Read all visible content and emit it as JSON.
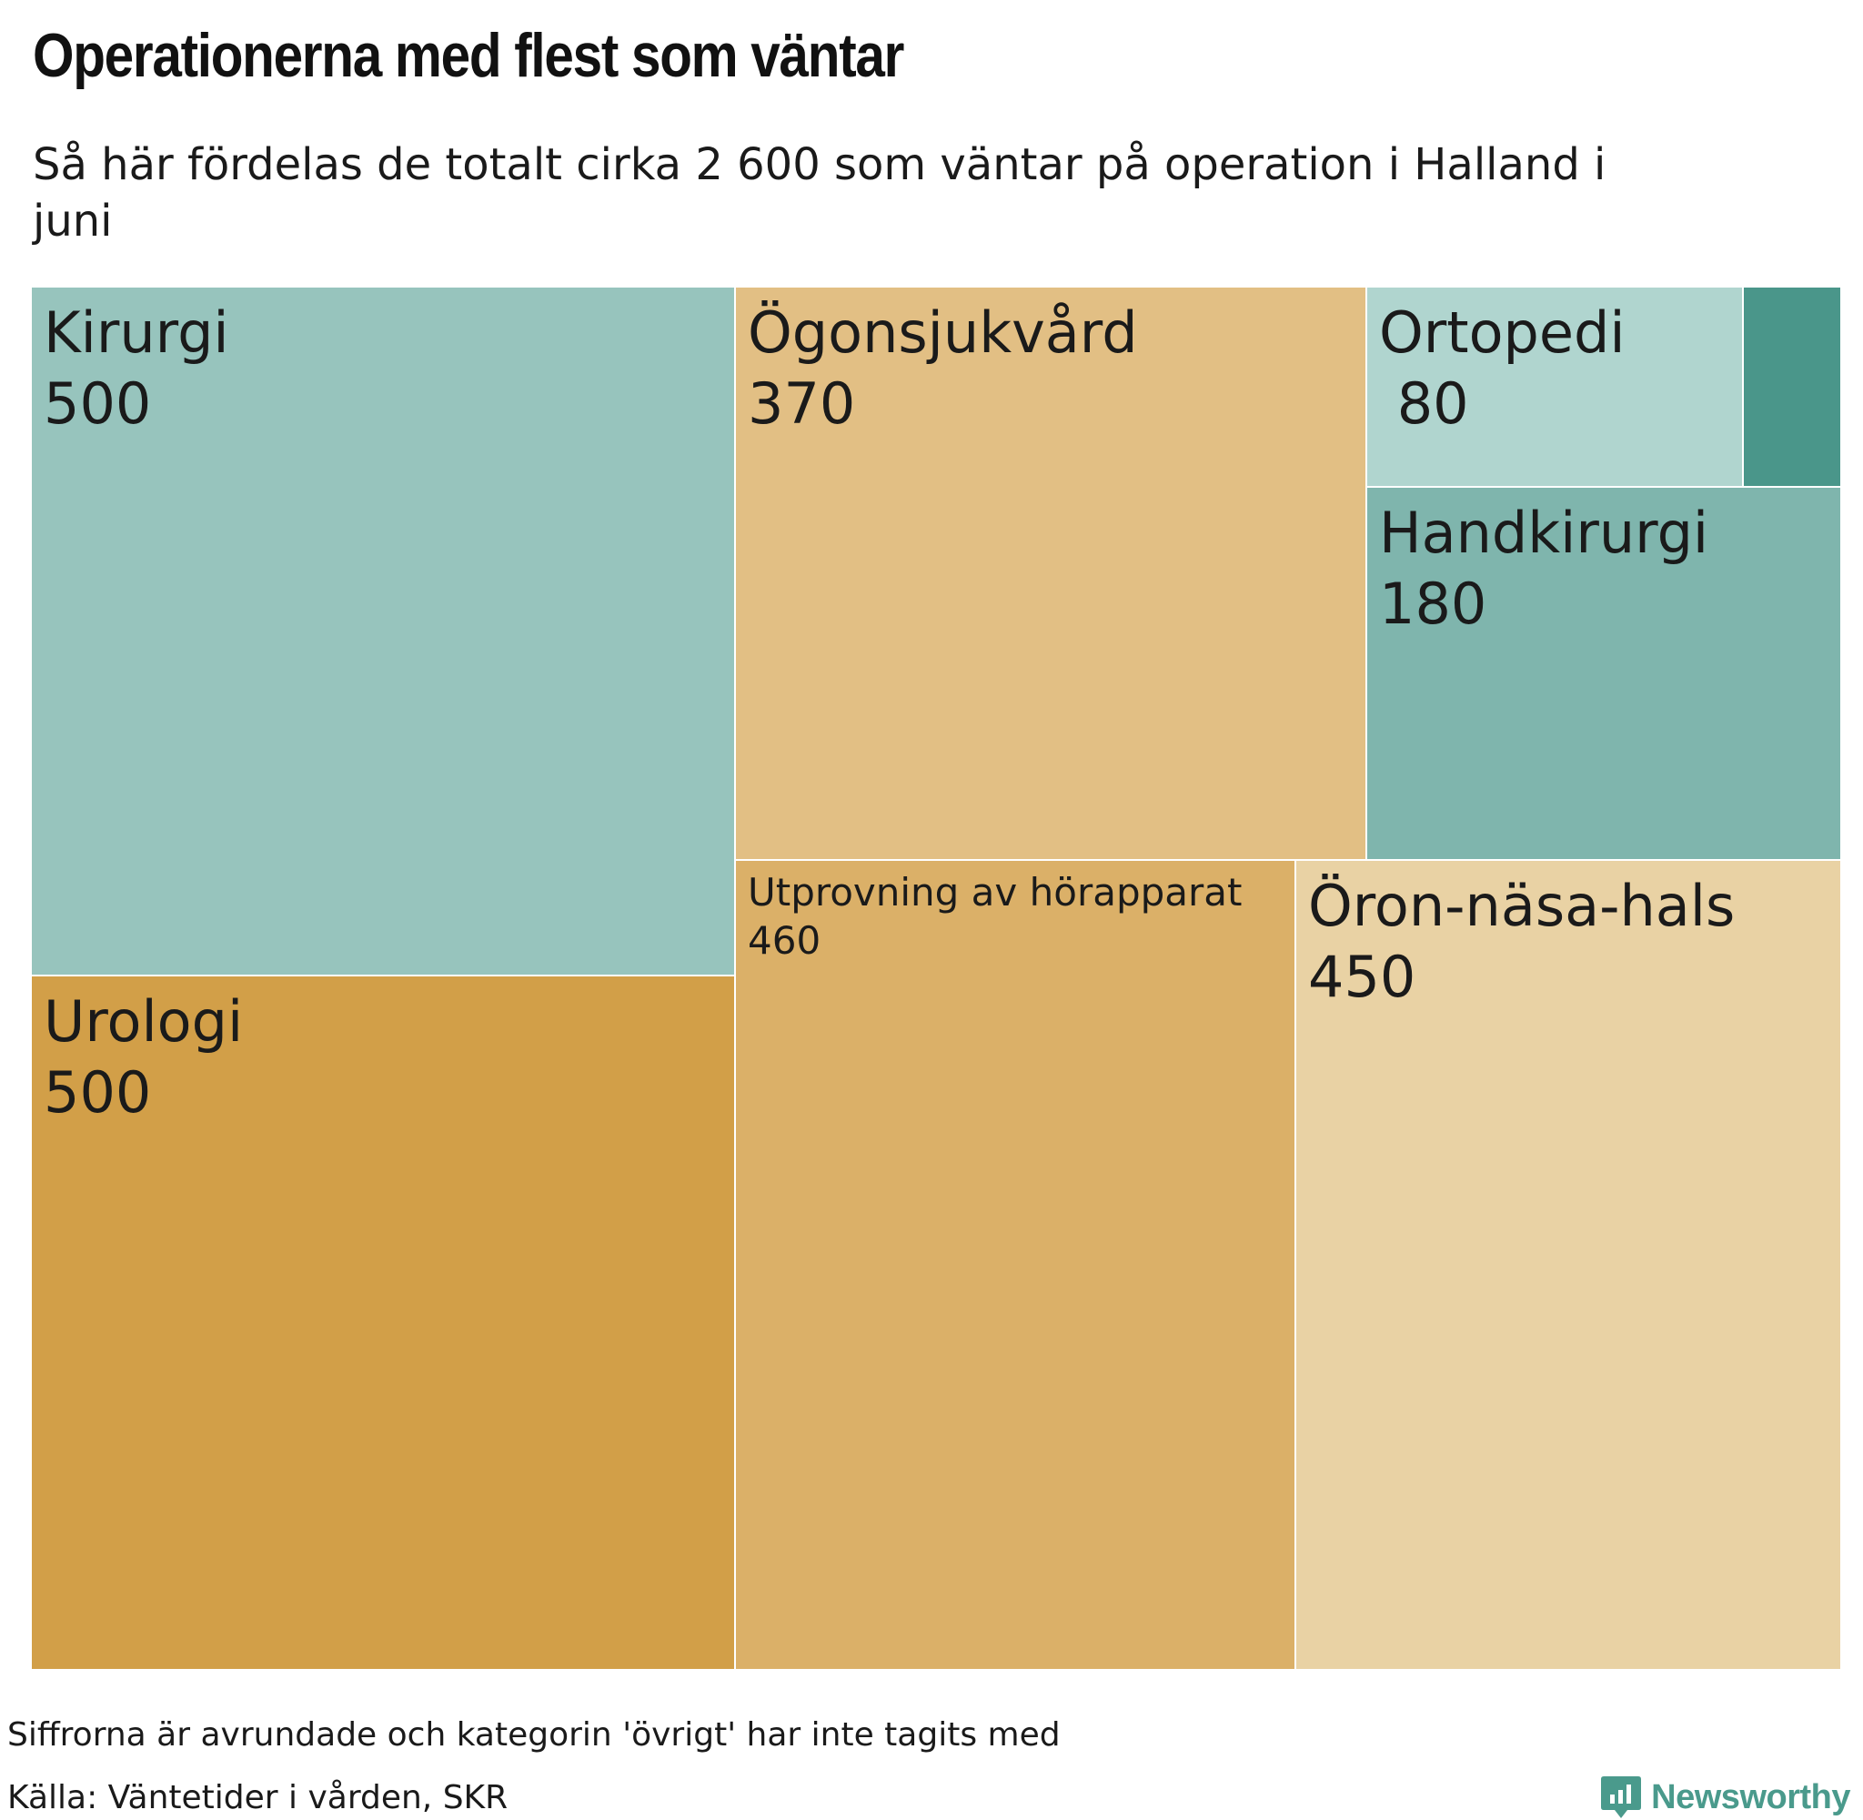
{
  "header": {
    "title": "Operationerna med flest som väntar",
    "subtitle": "Så här fördelas de totalt cirka 2 600 som väntar på operation i Halland i juni"
  },
  "footer": {
    "note": "Siffrorna är avrundade och kategorin 'övrigt' har inte tagits med",
    "source": "Källa: Väntetider i vården, SKR",
    "brand": "Newsworthy"
  },
  "colors": {
    "teal_dark": "#4a968a",
    "teal_mid": "#7fb5ad",
    "teal_light": "#97c4bd",
    "teal_pale": "#b0d5cf",
    "gold_dark": "#d29f48",
    "gold_mid": "#dbb068",
    "gold_light": "#e2bf84",
    "gold_pale": "#e9d2a4",
    "text": "#1a1a1a",
    "brand": "#4a9a8c"
  },
  "chart_data": {
    "type": "treemap",
    "title": "Operationerna med flest som väntar",
    "subtitle": "Så här fördelas de totalt cirka 2 600 som väntar på operation i Halland i juni",
    "total": 2600,
    "items": [
      {
        "label": "Kirurgi",
        "value": 500,
        "value_label": "500",
        "color": "#97c4bd"
      },
      {
        "label": "Urologi",
        "value": 500,
        "value_label": "500",
        "color": "#d29f48"
      },
      {
        "label": "Ögonsjukvård",
        "value": 370,
        "value_label": "370",
        "color": "#e2bf84"
      },
      {
        "label": "Utprovning av hörapparat",
        "value": 460,
        "value_label": "460",
        "color": "#dbb068"
      },
      {
        "label": "Öron-näsa-hals",
        "value": 450,
        "value_label": "450",
        "color": "#e9d2a4"
      },
      {
        "label": "Handkirurgi",
        "value": 180,
        "value_label": "180",
        "color": "#7fb5ad"
      },
      {
        "label": "Ortopedi",
        "value": 80,
        "value_label": " 80",
        "color": "#b0d5cf"
      },
      {
        "label": "",
        "value": 30,
        "value_label": "",
        "color": "#4a968a"
      }
    ]
  }
}
